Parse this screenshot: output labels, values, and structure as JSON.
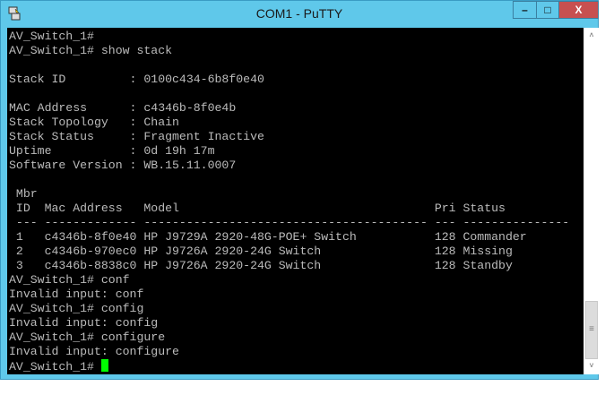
{
  "window": {
    "title": "COM1 - PuTTY",
    "minimize": "–",
    "maximize": "□",
    "close": "X",
    "icon": "putty-icon"
  },
  "terminal": {
    "lines": [
      "AV_Switch_1#",
      "AV_Switch_1# show stack",
      "",
      "Stack ID         : 0100c434-6b8f0e40",
      "",
      "MAC Address      : c4346b-8f0e4b",
      "Stack Topology   : Chain",
      "Stack Status     : Fragment Inactive",
      "Uptime           : 0d 19h 17m",
      "Software Version : WB.15.11.0007",
      "",
      " Mbr",
      " ID  Mac Address   Model                                    Pri Status",
      " --- ------------- ---------------------------------------- --- ---------------",
      " 1   c4346b-8f0e40 HP J9729A 2920-48G-POE+ Switch           128 Commander",
      " 2   c4346b-970ec0 HP J9726A 2920-24G Switch                128 Missing",
      " 3   c4346b-8838c0 HP J9726A 2920-24G Switch                128 Standby",
      "AV_Switch_1# conf",
      "Invalid input: conf",
      "AV_Switch_1# config",
      "Invalid input: config",
      "AV_Switch_1# configure",
      "Invalid input: configure"
    ],
    "prompt": "AV_Switch_1# ",
    "cursor_color": "#00ff00"
  },
  "scrollbar": {
    "up": "˄",
    "down": "˅",
    "grip": "≡"
  }
}
